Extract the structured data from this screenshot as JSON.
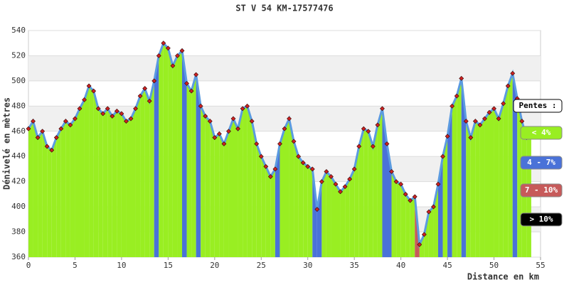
{
  "chart_data": {
    "type": "elevation",
    "title": "ST V 54 KM-17577476",
    "x_label": "Distance en km",
    "y_label": "Dénivelé en mètres",
    "x": [
      0,
      0.5,
      1,
      1.5,
      2,
      2.5,
      3,
      3.5,
      4,
      4.5,
      5,
      5.5,
      6,
      6.5,
      7,
      7.5,
      8,
      8.5,
      9,
      9.5,
      10,
      10.5,
      11,
      11.5,
      12,
      12.5,
      13,
      13.5,
      14,
      14.5,
      15,
      15.5,
      16,
      16.5,
      17,
      17.5,
      18,
      18.5,
      19,
      19.5,
      20,
      20.5,
      21,
      21.5,
      22,
      22.5,
      23,
      23.5,
      24,
      24.5,
      25,
      25.5,
      26,
      26.5,
      27,
      27.5,
      28,
      28.5,
      29,
      29.5,
      30,
      30.5,
      31,
      31.5,
      32,
      32.5,
      33,
      33.5,
      34,
      34.5,
      35,
      35.5,
      36,
      36.5,
      37,
      37.5,
      38,
      38.5,
      39,
      39.5,
      40,
      40.5,
      41,
      41.5,
      42,
      42.5,
      43,
      43.5,
      44,
      44.5,
      45,
      45.5,
      46,
      46.5,
      47,
      47.5,
      48,
      48.5,
      49,
      49.5,
      50,
      50.5,
      51,
      51.5,
      52,
      52.5,
      53,
      53.5,
      54
    ],
    "values": [
      462,
      468,
      455,
      460,
      448,
      445,
      455,
      462,
      468,
      465,
      470,
      478,
      485,
      496,
      492,
      478,
      474,
      478,
      472,
      476,
      474,
      468,
      470,
      478,
      488,
      494,
      484,
      500,
      520,
      530,
      526,
      512,
      520,
      524,
      498,
      492,
      505,
      480,
      472,
      468,
      455,
      458,
      450,
      460,
      470,
      462,
      478,
      480,
      468,
      450,
      440,
      432,
      424,
      430,
      450,
      462,
      470,
      452,
      440,
      435,
      432,
      430,
      398,
      420,
      428,
      424,
      418,
      412,
      416,
      422,
      430,
      448,
      462,
      460,
      448,
      465,
      478,
      450,
      428,
      420,
      418,
      410,
      405,
      408,
      370,
      378,
      396,
      400,
      418,
      440,
      456,
      480,
      488,
      502,
      468,
      455,
      468,
      465,
      470,
      475,
      478,
      470,
      482,
      496,
      506,
      486,
      468,
      455,
      462
    ],
    "line_color": "#5b9be0",
    "marker_color": "#cc2222",
    "xlim": [
      0,
      55
    ],
    "xticks": [
      0,
      5,
      10,
      15,
      20,
      25,
      30,
      35,
      40,
      45,
      50,
      55
    ],
    "ylim": [
      360,
      540
    ],
    "yticks": [
      360,
      380,
      400,
      420,
      440,
      460,
      480,
      500,
      520,
      540
    ],
    "legend_title": "Pentes :",
    "slope_classes": [
      {
        "label": "< 4%",
        "color": "#99ee22",
        "max": 4
      },
      {
        "label": "4 - 7%",
        "color": "#4a72d8",
        "max": 7
      },
      {
        "label": "7 - 10%",
        "color": "#c75a5a",
        "max": 10
      },
      {
        "label": "> 10%",
        "color": "#000000"
      }
    ]
  }
}
